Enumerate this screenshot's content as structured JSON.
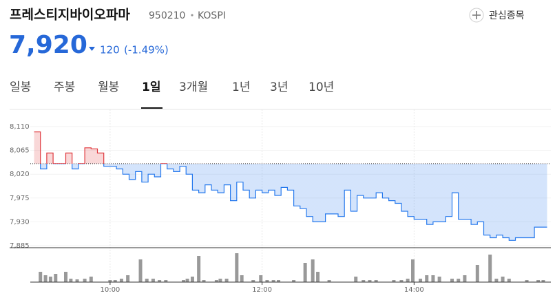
{
  "header": {
    "name": "프레스티지바이오파마",
    "code": "950210",
    "market": "KOSPI",
    "watch_button": "관심종목"
  },
  "price": {
    "value": "7,920",
    "change": "120",
    "change_pct": "(-1.49%)"
  },
  "tabs": [
    "일봉",
    "주봉",
    "월봉",
    "1일",
    "3개월",
    "1년",
    "3년",
    "10년"
  ],
  "active_tab": 3,
  "chart_data": {
    "type": "line",
    "x": [
      540,
      545,
      550,
      555,
      560,
      565,
      570,
      575,
      580,
      585,
      590,
      595,
      600,
      605,
      610,
      615,
      620,
      625,
      630,
      635,
      640,
      645,
      650,
      655,
      660,
      665,
      670,
      675,
      680,
      685,
      690,
      695,
      700,
      705,
      710,
      715,
      720,
      725,
      730,
      735,
      740,
      745,
      750,
      755,
      760,
      765,
      770,
      775,
      780,
      785,
      790,
      795,
      800,
      805,
      810,
      815,
      820,
      825,
      830,
      835,
      840,
      845,
      850,
      855,
      860,
      865,
      870,
      875,
      880,
      885,
      890,
      895,
      900,
      905,
      910,
      915,
      920,
      925,
      930,
      935,
      940,
      945
    ],
    "values": [
      8100,
      8030,
      8060,
      8040,
      8040,
      8060,
      8030,
      8040,
      8070,
      8068,
      8060,
      8035,
      8035,
      8030,
      8020,
      8010,
      8025,
      8005,
      8020,
      8015,
      8040,
      8030,
      8025,
      8035,
      8020,
      7990,
      7985,
      8000,
      7990,
      7985,
      8000,
      7970,
      8005,
      7990,
      7975,
      7990,
      7985,
      7990,
      7980,
      7995,
      7990,
      7960,
      7955,
      7940,
      7930,
      7930,
      7945,
      7945,
      7940,
      7990,
      7950,
      7980,
      7975,
      7975,
      7985,
      7975,
      7970,
      7965,
      7950,
      7940,
      7935,
      7935,
      7925,
      7930,
      7930,
      7940,
      7985,
      7935,
      7935,
      7925,
      7930,
      7905,
      7900,
      7905,
      7900,
      7895,
      7900,
      7900,
      7900,
      7920,
      7920,
      7920
    ],
    "reference_line": 8040,
    "up_color": "#e0393e",
    "down_color": "#2679ed",
    "xlim": [
      537,
      948
    ],
    "xticks": [
      {
        "value": 600,
        "label": "10:00"
      },
      {
        "value": 720,
        "label": "12:00"
      },
      {
        "value": 840,
        "label": "14:00"
      }
    ],
    "ylim": [
      7885,
      8110
    ],
    "yticks": [
      {
        "value": 8110,
        "label": "8,110"
      },
      {
        "value": 8065,
        "label": "8,065"
      },
      {
        "value": 8020,
        "label": "8,020"
      },
      {
        "value": 7975,
        "label": "7,975"
      },
      {
        "value": 7930,
        "label": "7,930"
      },
      {
        "value": 7885,
        "label": "7,885"
      }
    ],
    "grid": true,
    "volume": {
      "color": "#999999",
      "x": [
        545,
        549,
        553,
        557,
        565,
        569,
        574,
        580,
        585,
        600,
        604,
        609,
        614,
        624,
        629,
        634,
        639,
        644,
        658,
        661,
        665,
        670,
        674,
        684,
        687,
        692,
        700,
        704,
        713,
        719,
        724,
        729,
        733,
        745,
        754,
        760,
        764,
        773,
        794,
        800,
        805,
        810,
        824,
        830,
        835,
        839,
        845,
        850,
        855,
        860,
        870,
        875,
        880,
        890,
        900,
        905,
        910,
        915,
        929,
        938,
        942
      ],
      "values": [
        15,
        10,
        8,
        12,
        15,
        5,
        4,
        5,
        8,
        3,
        3,
        5,
        10,
        33,
        5,
        5,
        3,
        3,
        3,
        5,
        8,
        38,
        3,
        3,
        5,
        5,
        42,
        10,
        3,
        10,
        3,
        3,
        3,
        3,
        28,
        33,
        15,
        3,
        8,
        3,
        3,
        3,
        3,
        3,
        5,
        33,
        5,
        10,
        10,
        8,
        5,
        5,
        10,
        25,
        40,
        5,
        8,
        5,
        3,
        3,
        3
      ]
    }
  }
}
